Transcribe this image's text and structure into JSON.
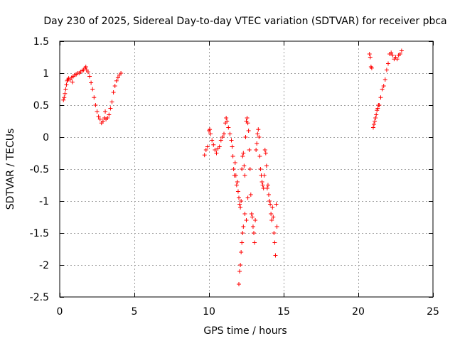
{
  "chart_data": {
    "type": "scatter",
    "title": "Day 230 of 2025, Sidereal Day-to-day VTEC variation (SDTVAR) for receiver pbca",
    "xlabel": "GPS time / hours",
    "ylabel": "SDTVAR / TECUs",
    "xlim": [
      0,
      25
    ],
    "ylim": [
      -2.5,
      1.5
    ],
    "xticks": [
      0,
      5,
      10,
      15,
      20,
      25
    ],
    "xtick_labels": [
      "0",
      "5",
      "10",
      "15",
      "20",
      "25"
    ],
    "yticks": [
      1.5,
      1,
      0.5,
      0,
      -0.5,
      -1,
      -1.5,
      -2,
      -2.5
    ],
    "ytick_labels": [
      "1.5",
      "1",
      "0.5",
      "0",
      "-0.5",
      "-1",
      "-1.5",
      "-2",
      "-2.5"
    ],
    "grid": true,
    "marker": "+",
    "colors": {
      "series": "#ff0000",
      "grid": "#a0a0a0",
      "axes": "#000000"
    },
    "series": [
      {
        "name": "SDTVAR",
        "points": [
          [
            0.25,
            0.58
          ],
          [
            0.3,
            0.62
          ],
          [
            0.35,
            0.68
          ],
          [
            0.4,
            0.75
          ],
          [
            0.45,
            0.82
          ],
          [
            0.5,
            0.88
          ],
          [
            0.55,
            0.9
          ],
          [
            0.6,
            0.92
          ],
          [
            0.7,
            0.9
          ],
          [
            0.8,
            0.93
          ],
          [
            0.85,
            0.86
          ],
          [
            0.9,
            0.95
          ],
          [
            1.0,
            0.97
          ],
          [
            1.1,
            0.98
          ],
          [
            1.2,
            1.0
          ],
          [
            1.3,
            1.0
          ],
          [
            1.4,
            1.02
          ],
          [
            1.5,
            1.04
          ],
          [
            1.6,
            1.05
          ],
          [
            1.7,
            1.08
          ],
          [
            1.75,
            1.1
          ],
          [
            1.8,
            1.05
          ],
          [
            1.9,
            1.02
          ],
          [
            2.0,
            0.95
          ],
          [
            2.1,
            0.85
          ],
          [
            2.2,
            0.75
          ],
          [
            2.3,
            0.62
          ],
          [
            2.4,
            0.5
          ],
          [
            2.5,
            0.4
          ],
          [
            2.6,
            0.32
          ],
          [
            2.7,
            0.28
          ],
          [
            2.8,
            0.22
          ],
          [
            2.9,
            0.25
          ],
          [
            3.0,
            0.3
          ],
          [
            3.05,
            0.4
          ],
          [
            3.1,
            0.28
          ],
          [
            3.2,
            0.3
          ],
          [
            3.3,
            0.35
          ],
          [
            3.4,
            0.45
          ],
          [
            3.5,
            0.55
          ],
          [
            3.6,
            0.7
          ],
          [
            3.7,
            0.8
          ],
          [
            3.8,
            0.88
          ],
          [
            3.9,
            0.93
          ],
          [
            4.0,
            0.97
          ],
          [
            4.1,
            1.0
          ],
          [
            9.7,
            -0.28
          ],
          [
            9.8,
            -0.2
          ],
          [
            9.9,
            -0.15
          ],
          [
            10.0,
            0.1
          ],
          [
            10.05,
            0.12
          ],
          [
            10.1,
            0.05
          ],
          [
            10.2,
            -0.05
          ],
          [
            10.3,
            -0.12
          ],
          [
            10.4,
            -0.2
          ],
          [
            10.5,
            -0.25
          ],
          [
            10.6,
            -0.18
          ],
          [
            10.7,
            -0.15
          ],
          [
            10.8,
            -0.05
          ],
          [
            10.9,
            0.0
          ],
          [
            11.0,
            0.05
          ],
          [
            11.1,
            0.22
          ],
          [
            11.15,
            0.3
          ],
          [
            11.2,
            0.25
          ],
          [
            11.3,
            0.15
          ],
          [
            11.4,
            0.05
          ],
          [
            11.5,
            -0.05
          ],
          [
            11.55,
            -0.15
          ],
          [
            11.6,
            -0.3
          ],
          [
            11.65,
            -0.5
          ],
          [
            11.7,
            -0.6
          ],
          [
            11.75,
            -0.4
          ],
          [
            11.8,
            -0.6
          ],
          [
            11.85,
            -0.75
          ],
          [
            11.9,
            -0.7
          ],
          [
            11.95,
            -0.85
          ],
          [
            12.0,
            -0.95
          ],
          [
            12.05,
            -1.05
          ],
          [
            12.1,
            -1.1
          ],
          [
            12.15,
            -1.0
          ],
          [
            12.2,
            -0.5
          ],
          [
            12.25,
            -0.3
          ],
          [
            12.3,
            -0.25
          ],
          [
            12.35,
            -0.45
          ],
          [
            12.4,
            -0.6
          ],
          [
            12.45,
            0.0
          ],
          [
            12.5,
            0.25
          ],
          [
            12.55,
            0.3
          ],
          [
            12.6,
            0.22
          ],
          [
            12.65,
            0.1
          ],
          [
            12.7,
            -0.2
          ],
          [
            12.75,
            -0.5
          ],
          [
            12.8,
            -0.9
          ],
          [
            12.85,
            -1.2
          ],
          [
            12.9,
            -1.25
          ],
          [
            12.95,
            -1.4
          ],
          [
            13.0,
            -1.5
          ],
          [
            13.05,
            -1.65
          ],
          [
            13.1,
            -1.3
          ],
          [
            13.15,
            -0.2
          ],
          [
            13.2,
            -0.1
          ],
          [
            13.25,
            0.05
          ],
          [
            13.3,
            0.12
          ],
          [
            13.35,
            0.0
          ],
          [
            13.4,
            -0.3
          ],
          [
            13.45,
            -0.5
          ],
          [
            13.5,
            -0.6
          ],
          [
            13.55,
            -0.7
          ],
          [
            13.6,
            -0.75
          ],
          [
            13.65,
            -0.8
          ],
          [
            13.7,
            -0.6
          ],
          [
            13.75,
            -0.2
          ],
          [
            13.8,
            -0.25
          ],
          [
            13.85,
            -0.45
          ],
          [
            13.9,
            -0.8
          ],
          [
            13.95,
            -0.75
          ],
          [
            14.0,
            -0.9
          ],
          [
            14.05,
            -1.0
          ],
          [
            14.1,
            -1.05
          ],
          [
            14.15,
            -1.2
          ],
          [
            14.2,
            -1.3
          ],
          [
            14.25,
            -1.1
          ],
          [
            14.3,
            -1.25
          ],
          [
            14.35,
            -1.5
          ],
          [
            14.4,
            -1.65
          ],
          [
            14.45,
            -1.85
          ],
          [
            14.5,
            -1.05
          ],
          [
            14.55,
            -1.4
          ],
          [
            12.0,
            -2.3
          ],
          [
            12.05,
            -2.1
          ],
          [
            12.1,
            -2.0
          ],
          [
            12.15,
            -1.8
          ],
          [
            12.2,
            -1.65
          ],
          [
            12.25,
            -1.5
          ],
          [
            12.3,
            -1.4
          ],
          [
            12.4,
            -1.2
          ],
          [
            12.5,
            -1.3
          ],
          [
            12.6,
            -0.95
          ],
          [
            20.75,
            1.3
          ],
          [
            20.8,
            1.25
          ],
          [
            20.85,
            1.1
          ],
          [
            20.9,
            1.08
          ],
          [
            21.0,
            0.15
          ],
          [
            21.05,
            0.2
          ],
          [
            21.1,
            0.25
          ],
          [
            21.15,
            0.3
          ],
          [
            21.2,
            0.35
          ],
          [
            21.25,
            0.42
          ],
          [
            21.3,
            0.45
          ],
          [
            21.35,
            0.5
          ],
          [
            21.4,
            0.5
          ],
          [
            21.5,
            0.62
          ],
          [
            21.6,
            0.75
          ],
          [
            21.7,
            0.8
          ],
          [
            21.8,
            0.9
          ],
          [
            21.9,
            1.05
          ],
          [
            22.0,
            1.15
          ],
          [
            22.1,
            1.3
          ],
          [
            22.2,
            1.32
          ],
          [
            22.3,
            1.28
          ],
          [
            22.4,
            1.22
          ],
          [
            22.5,
            1.25
          ],
          [
            22.6,
            1.22
          ],
          [
            22.7,
            1.28
          ],
          [
            22.8,
            1.3
          ],
          [
            22.9,
            1.35
          ]
        ]
      }
    ]
  }
}
